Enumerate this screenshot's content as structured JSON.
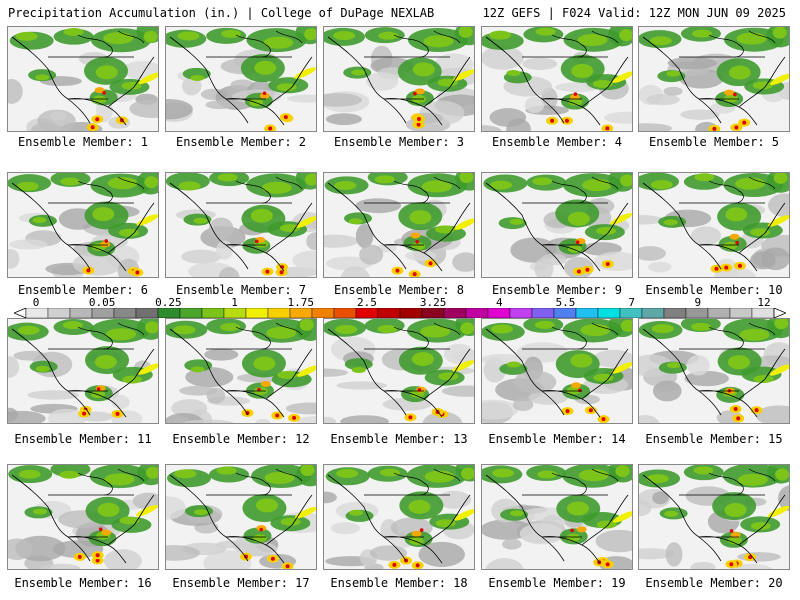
{
  "header": {
    "title_left": "Precipitation Accumulation (in.) | College of DuPage NEXLAB",
    "title_right": "12Z GEFS | F024 Valid: 12Z MON JUN 09 2025"
  },
  "members": [
    {
      "label": "Ensemble Member: 1"
    },
    {
      "label": "Ensemble Member: 2"
    },
    {
      "label": "Ensemble Member: 3"
    },
    {
      "label": "Ensemble Member: 4"
    },
    {
      "label": "Ensemble Member: 5"
    },
    {
      "label": "Ensemble Member: 6"
    },
    {
      "label": "Ensemble Member: 7"
    },
    {
      "label": "Ensemble Member: 8"
    },
    {
      "label": "Ensemble Member: 9"
    },
    {
      "label": "Ensemble Member: 10"
    },
    {
      "label": "Ensemble Member: 11"
    },
    {
      "label": "Ensemble Member: 12"
    },
    {
      "label": "Ensemble Member: 13"
    },
    {
      "label": "Ensemble Member: 14"
    },
    {
      "label": "Ensemble Member: 15"
    },
    {
      "label": "Ensemble Member: 16"
    },
    {
      "label": "Ensemble Member: 17"
    },
    {
      "label": "Ensemble Member: 18"
    },
    {
      "label": "Ensemble Member: 19"
    },
    {
      "label": "Ensemble Member: 20"
    }
  ],
  "colorbar": {
    "labels": [
      "0",
      "0.05",
      "0.25",
      "1",
      "1.75",
      "2.5",
      "3.25",
      "4",
      "5.5",
      "7",
      "9",
      "12"
    ],
    "colors": [
      "#e8e8e8",
      "#d0d0d0",
      "#b8b8b8",
      "#a0a0a0",
      "#888888",
      "#707070",
      "#2e8b2e",
      "#4aa52a",
      "#7cc41a",
      "#b8dc14",
      "#f0f000",
      "#f8d000",
      "#f8a800",
      "#f08000",
      "#e85000",
      "#e00000",
      "#c00000",
      "#a00000",
      "#8b0020",
      "#a00060",
      "#c000a0",
      "#e000d0",
      "#c040f0",
      "#8060f0",
      "#5080f0",
      "#20c0f0",
      "#00e0e0",
      "#40c0c0",
      "#60a8a8",
      "#808080",
      "#989898",
      "#b0b0b0",
      "#c8c8c8",
      "#e0e0e0"
    ]
  }
}
